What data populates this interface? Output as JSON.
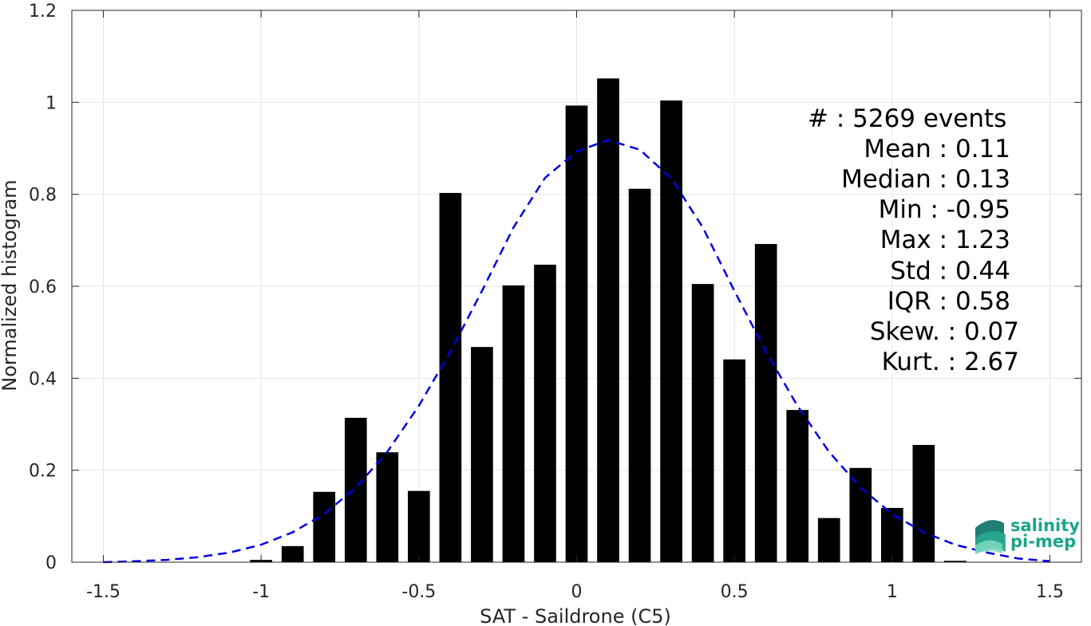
{
  "chart_data": {
    "type": "bar",
    "xlabel": "SAT - Saildrone (C5)",
    "ylabel": "Normalized histogram",
    "xlim": [
      -1.6,
      1.6
    ],
    "ylim": [
      0,
      1.2
    ],
    "x_ticks": [
      -1.5,
      -1,
      -0.5,
      0,
      0.5,
      1,
      1.5
    ],
    "x_tick_labels": [
      "-1.5",
      "-1",
      "-0.5",
      "0",
      "0.5",
      "1",
      "1.5"
    ],
    "y_ticks": [
      0,
      0.2,
      0.4,
      0.6,
      0.8,
      1,
      1.2
    ],
    "y_tick_labels": [
      "0",
      "0.2",
      "0.4",
      "0.6",
      "0.8",
      "1",
      "1.2"
    ],
    "grid": true,
    "bar_color": "#000000",
    "bar_width": 0.07,
    "bars": {
      "x": [
        -1.0,
        -0.9,
        -0.8,
        -0.7,
        -0.6,
        -0.5,
        -0.4,
        -0.3,
        -0.2,
        -0.1,
        0.0,
        0.1,
        0.2,
        0.3,
        0.4,
        0.5,
        0.6,
        0.7,
        0.8,
        0.9,
        1.0,
        1.1,
        1.2
      ],
      "values": [
        0.005,
        0.035,
        0.153,
        0.314,
        0.239,
        0.155,
        0.803,
        0.468,
        0.602,
        0.647,
        0.993,
        1.052,
        0.812,
        1.004,
        0.605,
        0.441,
        0.692,
        0.331,
        0.096,
        0.205,
        0.118,
        0.255,
        0.003
      ]
    },
    "fit_curve": {
      "style": "dashed",
      "color": "#0000e0",
      "x": [
        -1.5,
        -1.4,
        -1.3,
        -1.2,
        -1.1,
        -1.0,
        -0.9,
        -0.8,
        -0.7,
        -0.6,
        -0.5,
        -0.4,
        -0.3,
        -0.2,
        -0.1,
        0.0,
        0.1,
        0.2,
        0.3,
        0.4,
        0.5,
        0.6,
        0.7,
        0.8,
        0.9,
        1.0,
        1.1,
        1.2,
        1.3,
        1.4,
        1.5
      ],
      "y": [
        0.0,
        0.002,
        0.005,
        0.011,
        0.021,
        0.038,
        0.065,
        0.105,
        0.162,
        0.24,
        0.34,
        0.458,
        0.59,
        0.728,
        0.836,
        0.893,
        0.918,
        0.897,
        0.835,
        0.728,
        0.59,
        0.458,
        0.34,
        0.24,
        0.162,
        0.105,
        0.065,
        0.038,
        0.021,
        0.008,
        0.002
      ]
    },
    "stats_text": [
      "#  : 5269 events",
      "Mean : 0.11",
      "Median : 0.13",
      "Min : -0.95",
      "Max : 1.23",
      "Std : 0.44",
      "IQR : 0.58",
      "Skew. : 0.07",
      "Kurt. : 2.67"
    ]
  },
  "logo": {
    "line1": "salinity",
    "line2": "pi-mep",
    "color": "#1aa58a"
  }
}
